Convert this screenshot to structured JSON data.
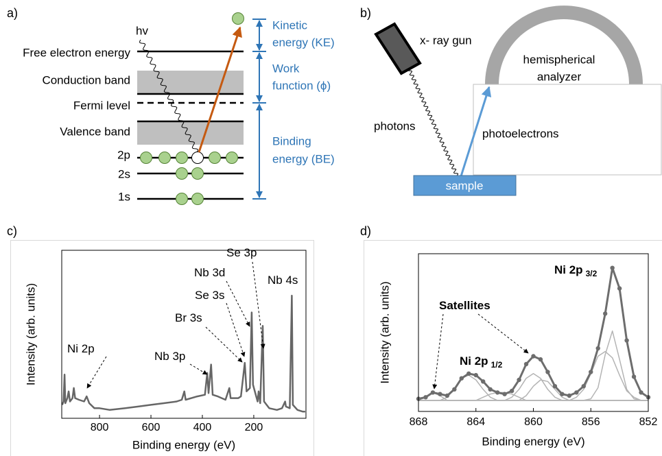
{
  "panel_labels": [
    "a)",
    "b)",
    "c)",
    "d)"
  ],
  "diagram_a": {
    "photon": "hv",
    "levels": [
      "Free electron energy",
      "Conduction band",
      "Fermi level",
      "Valence band",
      "2p",
      "2s",
      "1s"
    ],
    "energies": [
      [
        "Kinetic",
        "energy (KE)"
      ],
      [
        "Work",
        "function (ϕ)"
      ],
      [
        "Binding",
        "energy (BE)"
      ]
    ]
  },
  "diagram_b": {
    "source": "x- ray gun",
    "analyzer": [
      "hemispherical",
      "analyzer"
    ],
    "photons": "photons",
    "electrons": "photoelectrons",
    "sample": "sample"
  },
  "chart_data": [
    {
      "type": "line",
      "xlabel": "Binding energy (eV)",
      "ylabel": "Intensity (arb. units)",
      "annotations": [
        {
          "text": "Ni 2p"
        },
        {
          "text": "Nb 3p"
        },
        {
          "text": "Br 3s"
        },
        {
          "text": "Se 3s"
        },
        {
          "text": "Nb 3d"
        },
        {
          "text": "Se 3p"
        },
        {
          "text": "Nb 4s"
        }
      ],
      "x": [
        945,
        940,
        936,
        933,
        925,
        920,
        915,
        905,
        900,
        895,
        880,
        860,
        850,
        840,
        820,
        800,
        760,
        700,
        650,
        600,
        550,
        500,
        480,
        470,
        465,
        420,
        390,
        381,
        376,
        366,
        360,
        340,
        310,
        295,
        290,
        260,
        250,
        235,
        228,
        215,
        208,
        203,
        185,
        181,
        175,
        165,
        160,
        140,
        110,
        90,
        78,
        75,
        60,
        52,
        48,
        30,
        10,
        0
      ],
      "series": [
        {
          "color": "#666666",
          "values": [
            8,
            10,
            26,
            9,
            12,
            16,
            10,
            12,
            18,
            12,
            11,
            10,
            13,
            9,
            6,
            6,
            5,
            6,
            7,
            8,
            9,
            10,
            11,
            16,
            11,
            13,
            14,
            27,
            15,
            32,
            14,
            13,
            11,
            18,
            12,
            12,
            13,
            33,
            16,
            18,
            63,
            20,
            10,
            16,
            9,
            55,
            10,
            6,
            5,
            6,
            10,
            7,
            6,
            73,
            8,
            5,
            4,
            4
          ]
        }
      ],
      "xlim": [
        947,
        -3
      ],
      "ylim": [
        0,
        100
      ],
      "xticks": [
        800,
        600,
        400,
        200
      ]
    },
    {
      "type": "line",
      "xlabel": "Binding energy (eV)",
      "ylabel": "Intensity (arb. units)",
      "annotations": [
        {
          "text": "Satellites"
        },
        {
          "text": "Ni 2p",
          "sub": "1/2"
        },
        {
          "text": "Ni 2p",
          "sub": "3/2"
        }
      ],
      "x": [
        868,
        867.5,
        867,
        866.5,
        866,
        865.5,
        865,
        864.5,
        864,
        863.5,
        863,
        862.5,
        862,
        861.5,
        861,
        860.5,
        860,
        859.5,
        859,
        858.5,
        858,
        857.5,
        857,
        856.5,
        856,
        855.5,
        855,
        854.5,
        854,
        853.5,
        853,
        852.5,
        852
      ],
      "series": [
        {
          "color": "#b4b4b4",
          "values": [
            7,
            7,
            7,
            7,
            7,
            7,
            7,
            7,
            7,
            7,
            7,
            7,
            7,
            7,
            7,
            7,
            7,
            7,
            7,
            7,
            7,
            7,
            7,
            7,
            8,
            15,
            36,
            51,
            33,
            14,
            8,
            7,
            7
          ]
        },
        {
          "color": "#b4b4b4",
          "values": [
            7,
            7,
            7,
            7,
            7,
            7,
            7,
            7,
            7,
            7,
            7,
            7,
            7,
            7,
            7,
            7,
            7,
            7,
            7,
            7,
            7,
            7,
            9,
            14,
            24,
            35,
            38,
            34,
            23,
            13,
            9,
            7,
            7
          ]
        },
        {
          "color": "#b4b4b4",
          "values": [
            7,
            7,
            7,
            7,
            7,
            7,
            7,
            7,
            7,
            7,
            7,
            7,
            7,
            9,
            14,
            21,
            24,
            21,
            14,
            9,
            7,
            7,
            7,
            7,
            7,
            7,
            7,
            7,
            7,
            7,
            7,
            7,
            7
          ]
        },
        {
          "color": "#b4b4b4",
          "values": [
            7,
            7,
            7,
            7,
            7,
            7,
            7,
            7,
            7,
            7,
            7,
            7,
            7,
            7,
            7,
            10,
            16,
            20,
            19,
            14,
            9,
            7,
            7,
            7,
            7,
            7,
            7,
            7,
            7,
            7,
            7,
            7,
            7
          ]
        },
        {
          "color": "#b4b4b4",
          "values": [
            7,
            7,
            7,
            7,
            9,
            14,
            21,
            23,
            20,
            14,
            9,
            7,
            7,
            7,
            7,
            7,
            7,
            7,
            7,
            7,
            7,
            7,
            7,
            7,
            7,
            7,
            7,
            7,
            7,
            7,
            7,
            7,
            7
          ]
        },
        {
          "color": "#b4b4b4",
          "values": [
            7,
            7,
            7,
            7,
            7,
            7,
            7,
            7,
            7,
            9,
            11,
            12,
            12,
            11,
            9,
            7,
            7,
            7,
            7,
            7,
            7,
            7,
            7,
            7,
            7,
            7,
            7,
            7,
            7,
            7,
            7,
            7,
            7
          ]
        },
        {
          "color": "#b4b4b4",
          "values": [
            7,
            9,
            12,
            10,
            7,
            7,
            7,
            7,
            7,
            7,
            7,
            7,
            7,
            7,
            7,
            7,
            7,
            7,
            7,
            7,
            7,
            7,
            7,
            7,
            7,
            7,
            7,
            7,
            7,
            7,
            7,
            7,
            7
          ]
        },
        {
          "color": "#6d6d6d",
          "markers": true,
          "values": [
            8,
            9,
            12,
            11,
            10,
            14,
            21,
            24,
            23,
            19,
            14,
            12,
            11,
            13,
            20,
            30,
            35,
            33,
            25,
            16,
            11,
            10,
            12,
            16,
            25,
            40,
            62,
            91,
            78,
            45,
            22,
            12,
            9
          ]
        }
      ],
      "xlim": [
        868,
        852
      ],
      "ylim": [
        0,
        100
      ],
      "xticks": [
        868,
        864,
        860,
        856,
        852
      ]
    }
  ]
}
